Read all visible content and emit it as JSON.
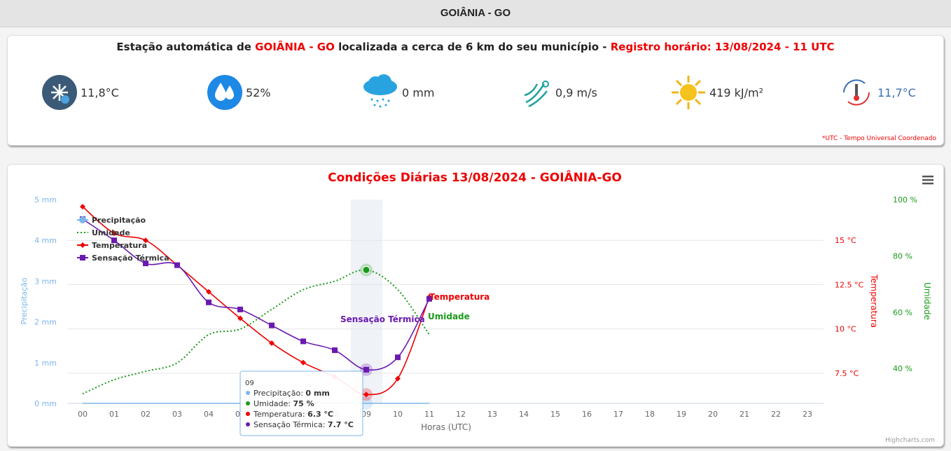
{
  "header": {
    "title": "GOIÂNIA - GO"
  },
  "station": {
    "prefix": "Estação automática de ",
    "city": "GOIÂNIA - GO",
    "middle": " localizada a cerca de 6 km do seu município - ",
    "record": "Registro horário: 13/08/2024 - 11 UTC",
    "readings": [
      "11,8°C",
      "52%",
      "0 mm",
      "0,9 m/s",
      "419 kJ/m²",
      "11,7°C"
    ],
    "note": "*UTC - Tempo Universal Coordenado"
  },
  "chart_data": {
    "type": "line",
    "title": "Condições Diárias 13/08/2024 - GOIÂNIA-GO",
    "x_label": "Horas (UTC)",
    "y_label": "Precipitação",
    "y2_label": "Temperatura",
    "y3_label": "Umidade",
    "categories": [
      "00",
      "01",
      "02",
      "03",
      "04",
      "05",
      "06",
      "07",
      "08",
      "09",
      "10",
      "11",
      "12",
      "13",
      "14",
      "15",
      "16",
      "17",
      "18",
      "19",
      "20",
      "21",
      "22",
      "23"
    ],
    "ylim": [
      0,
      5
    ],
    "yticks": [
      {
        "value": 0,
        "label": "0 mm"
      },
      {
        "value": 1,
        "label": "1 mm"
      },
      {
        "value": 2,
        "label": "2 mm"
      },
      {
        "value": 3,
        "label": "3 mm"
      },
      {
        "value": 4,
        "label": "4 mm"
      },
      {
        "value": 5,
        "label": "5 mm"
      }
    ],
    "y2lim": [
      5.8,
      17.3
    ],
    "y2ticks": [
      {
        "value": 7.5,
        "label": "7.5 °C"
      },
      {
        "value": 10,
        "label": "10 °C"
      },
      {
        "value": 12.5,
        "label": "12.5 °C"
      },
      {
        "value": 15,
        "label": "15 °C"
      }
    ],
    "y3lim": [
      27.6,
      100
    ],
    "y3ticks": [
      {
        "value": 40,
        "label": "40 %"
      },
      {
        "value": 60,
        "label": "60 %"
      },
      {
        "value": 80,
        "label": "80 %"
      },
      {
        "value": 100,
        "label": "100 %"
      }
    ],
    "grid": true,
    "legend": "top-left",
    "series": [
      {
        "name": "Precipitação",
        "color": "#7cb5ec",
        "axis": "y",
        "marker": "circle",
        "dash": false,
        "values": [
          0,
          0,
          0,
          0,
          0,
          0,
          0,
          0,
          0,
          0,
          0,
          0,
          null,
          null,
          null,
          null,
          null,
          null,
          null,
          null,
          null,
          null,
          null,
          null
        ]
      },
      {
        "name": "Umidade",
        "color": "#1a9a1a",
        "axis": "y3",
        "marker": "none",
        "dash": true,
        "values": [
          31,
          36,
          39,
          42,
          52,
          54,
          61,
          68,
          71,
          75,
          68,
          52,
          null,
          null,
          null,
          null,
          null,
          null,
          null,
          null,
          null,
          null,
          null,
          null
        ]
      },
      {
        "name": "Temperatura",
        "color": "#ee0000",
        "axis": "y2",
        "marker": "diamond",
        "dash": false,
        "values": [
          16.9,
          15.4,
          15.0,
          13.6,
          12.1,
          10.6,
          9.2,
          8.1,
          7.3,
          6.3,
          7.2,
          11.8,
          null,
          null,
          null,
          null,
          null,
          null,
          null,
          null,
          null,
          null,
          null,
          null
        ]
      },
      {
        "name": "Sensação Térmica",
        "color": "#6a1ab0",
        "axis": "y2",
        "marker": "square",
        "dash": false,
        "values": [
          16.2,
          15.0,
          13.7,
          13.6,
          11.5,
          11.1,
          10.2,
          9.3,
          8.8,
          7.7,
          8.4,
          11.7,
          null,
          null,
          null,
          null,
          null,
          null,
          null,
          null,
          null,
          null,
          null,
          null
        ]
      }
    ],
    "annotations": [
      "Sensação Térmica",
      "Temperatura",
      "Umidade"
    ],
    "tooltip": {
      "title": "09",
      "rows": [
        {
          "label": "Precipitação: ",
          "value": "0 mm"
        },
        {
          "label": "Umidade: ",
          "value": "75 %"
        },
        {
          "label": "Temperatura: ",
          "value": "6.3 °C"
        },
        {
          "label": "Sensação Térmica: ",
          "value": "7.7 °C"
        }
      ]
    },
    "credits": "Highcharts.com"
  }
}
